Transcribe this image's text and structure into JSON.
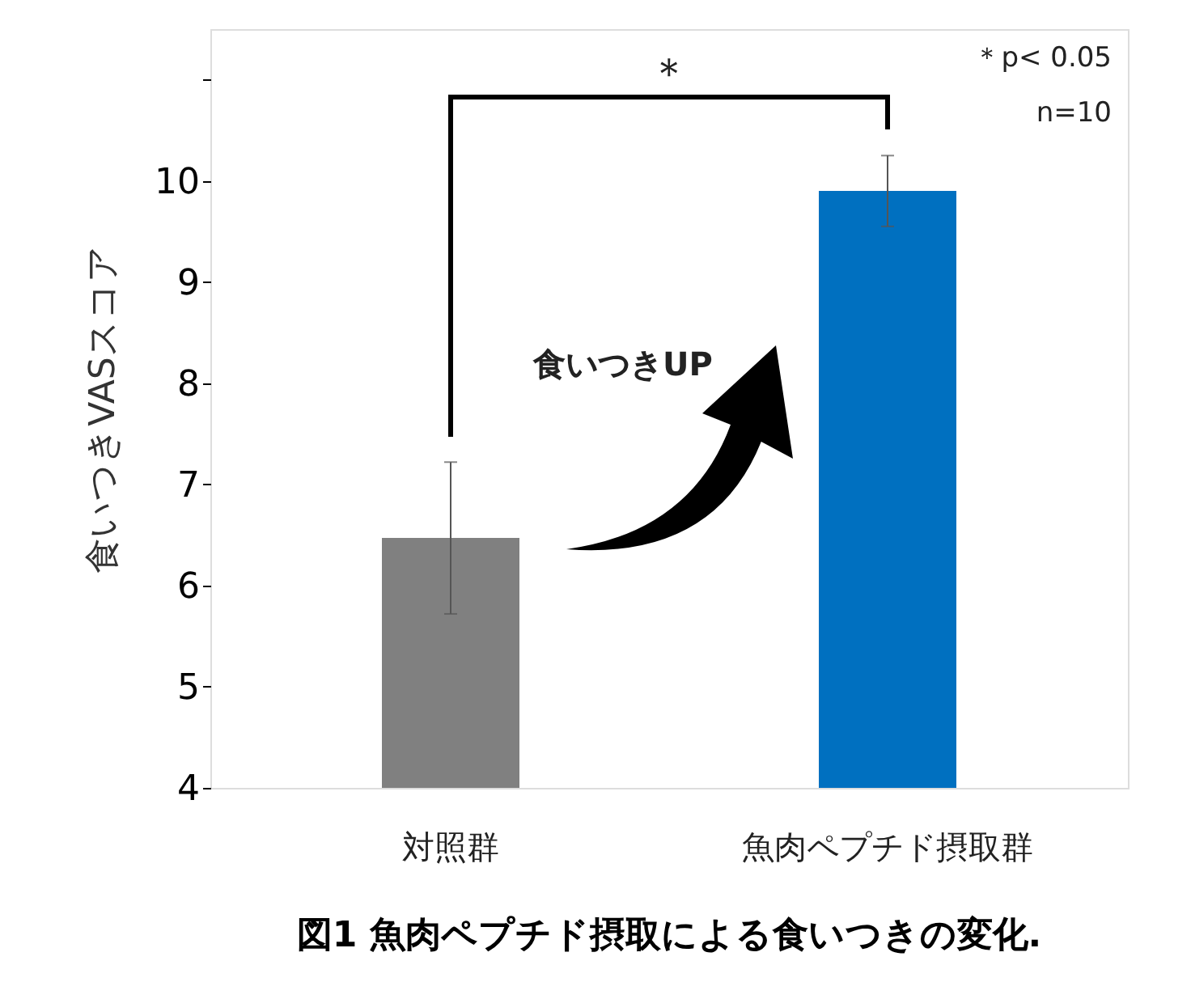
{
  "chart_data": {
    "type": "bar",
    "title": "図1 魚肉ペプチド摂取による食いつきの変化.",
    "ylabel": "食いつきVASスコア",
    "categories": [
      "対照群",
      "魚肉ペプチド摂取群"
    ],
    "values": [
      6.47,
      9.9
    ],
    "colors": [
      "#808080",
      "#0070c0"
    ],
    "errors": [
      0.75,
      0.35
    ],
    "ylim": [
      4,
      11.5
    ],
    "yticks": [
      4,
      5,
      6,
      7,
      8,
      9,
      10,
      {
        "value": 11,
        "label": null
      }
    ],
    "grid": false,
    "annotations": [
      "＊",
      "＊p< 0.05",
      "n=10",
      "食いつきUP"
    ]
  }
}
